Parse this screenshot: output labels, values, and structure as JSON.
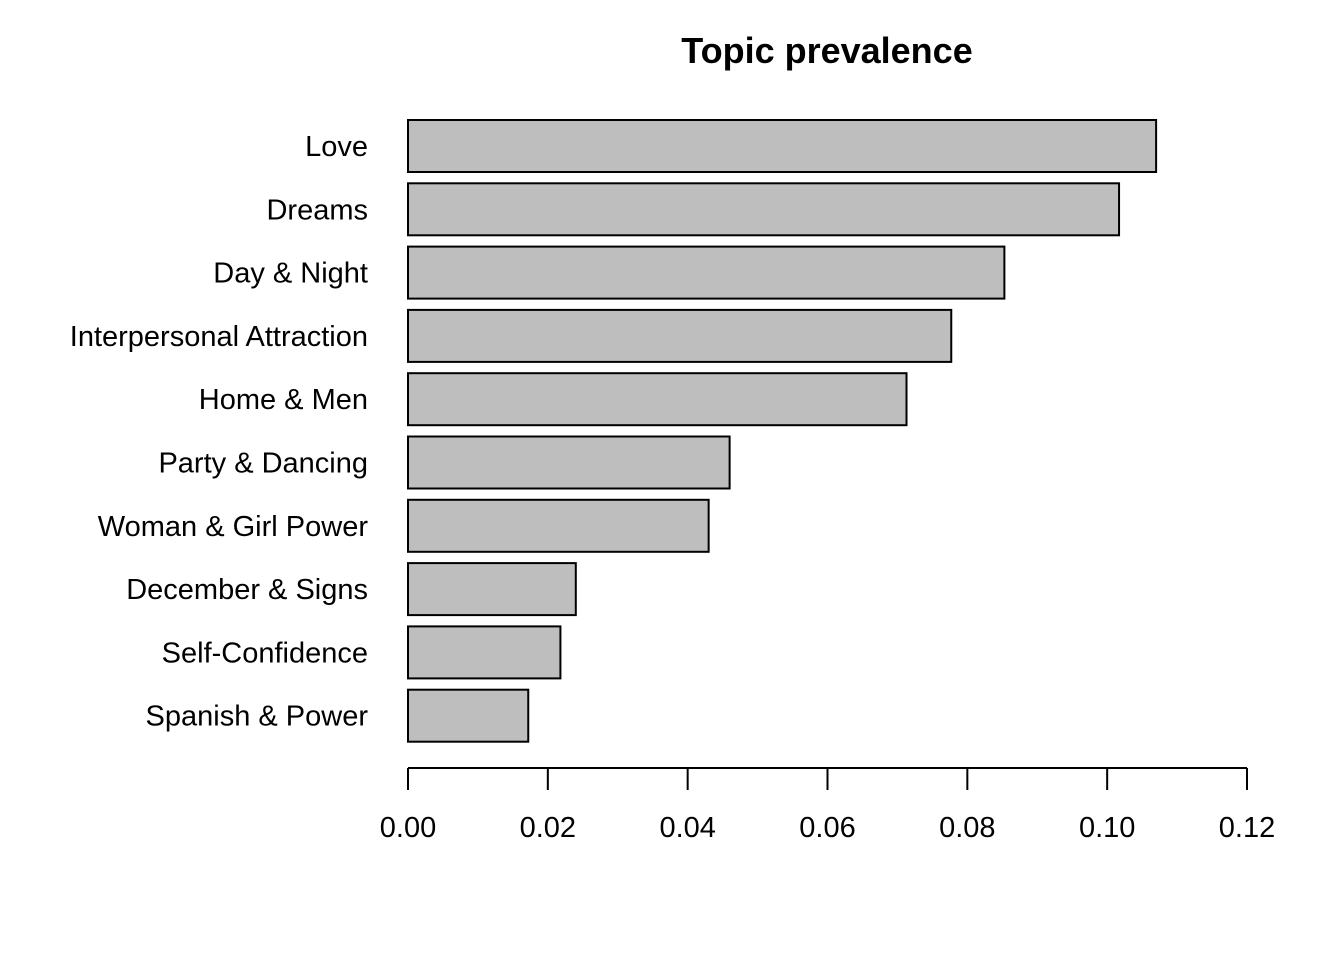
{
  "chart_data": {
    "type": "bar",
    "orientation": "horizontal",
    "title": "Topic prevalence",
    "xlabel": "",
    "ylabel": "",
    "categories": [
      "Love",
      "Dreams",
      "Day & Night",
      "Interpersonal Attraction",
      "Home & Men",
      "Party & Dancing",
      "Woman & Girl Power",
      "December & Signs",
      "Self-Confidence",
      "Spanish & Power"
    ],
    "values": [
      0.107,
      0.1017,
      0.0853,
      0.0777,
      0.0713,
      0.046,
      0.043,
      0.024,
      0.0218,
      0.0172
    ],
    "xlim": [
      0,
      0.12
    ],
    "xticks": [
      0,
      0.02,
      0.04,
      0.06,
      0.08,
      0.1,
      0.12
    ],
    "xtick_labels": [
      "0.00",
      "0.02",
      "0.04",
      "0.06",
      "0.08",
      "0.10",
      "0.12"
    ],
    "grid": false,
    "legend": "none",
    "bar_color": "#bebebe",
    "bar_edge_color": "#000000"
  }
}
